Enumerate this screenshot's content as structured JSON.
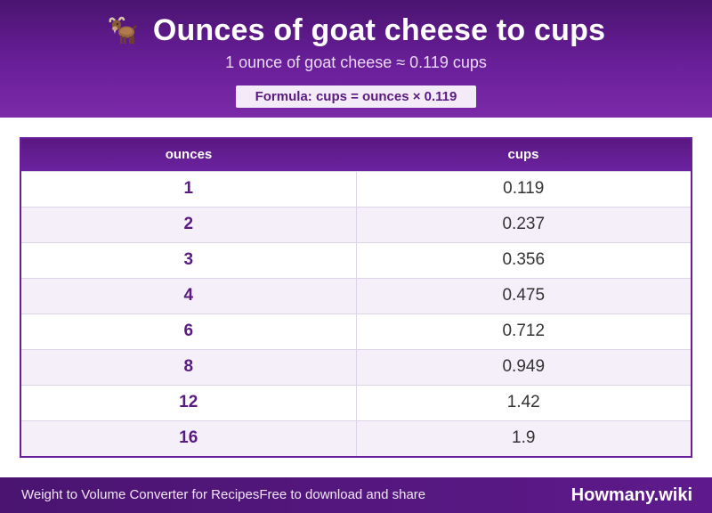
{
  "header": {
    "title": "Ounces of goat cheese to cups",
    "icon": "goat-icon",
    "subtitle": "1 ounce of goat cheese ≈ 0.119 cups",
    "formula": "Formula: cups = ounces × 0.119"
  },
  "table": {
    "columns": [
      "ounces",
      "cups"
    ],
    "rows": [
      {
        "ounces": "1",
        "cups": "0.119"
      },
      {
        "ounces": "2",
        "cups": "0.237"
      },
      {
        "ounces": "3",
        "cups": "0.356"
      },
      {
        "ounces": "4",
        "cups": "0.475"
      },
      {
        "ounces": "6",
        "cups": "0.712"
      },
      {
        "ounces": "8",
        "cups": "0.949"
      },
      {
        "ounces": "12",
        "cups": "1.42"
      },
      {
        "ounces": "16",
        "cups": "1.9"
      }
    ]
  },
  "footer": {
    "left_text": "Weight to Volume Converter for RecipesFree to download and share",
    "brand": "Howmany.wiki"
  },
  "colors": {
    "accent": "#6a1f9a",
    "header_dark": "#4a1470",
    "row_alt": "#f4eff9"
  }
}
